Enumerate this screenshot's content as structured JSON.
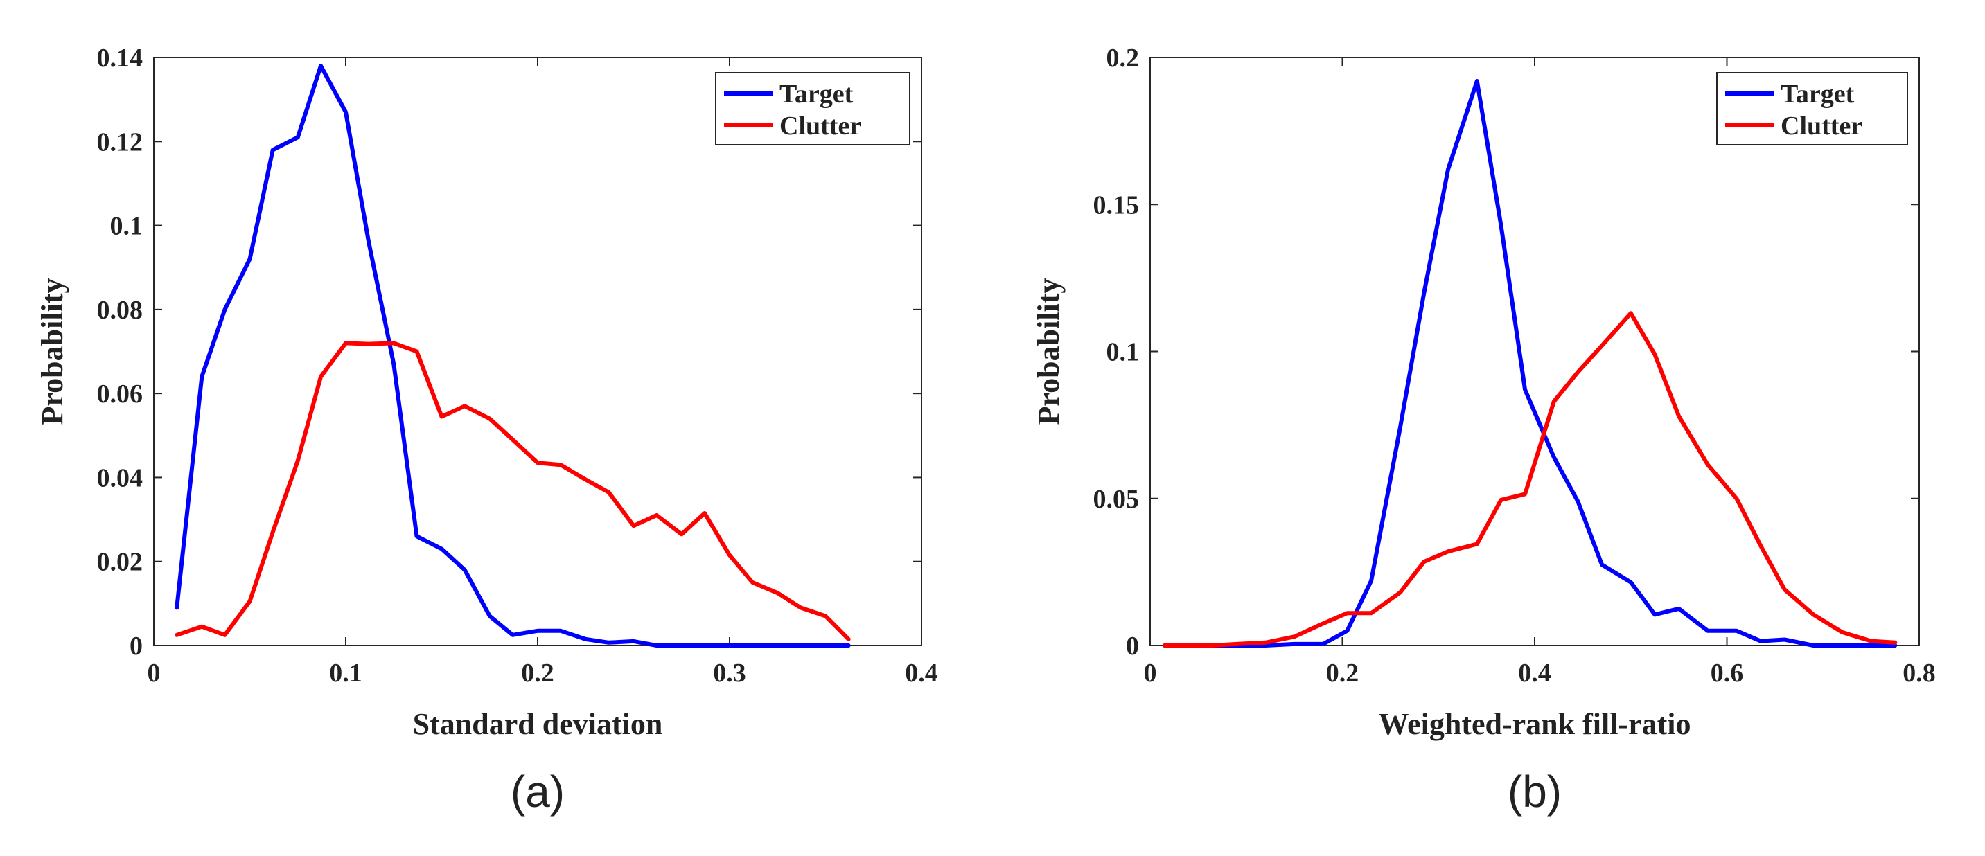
{
  "chart_data": [
    {
      "type": "line",
      "panel_label": "(a)",
      "xlabel": "Standard deviation",
      "ylabel": "Probability",
      "xlim": [
        0,
        0.4
      ],
      "ylim": [
        0,
        0.14
      ],
      "xticks": [
        0,
        0.1,
        0.2,
        0.3,
        0.4
      ],
      "xtick_labels": [
        "0",
        "0.1",
        "0.2",
        "0.3",
        "0.4"
      ],
      "yticks": [
        0,
        0.02,
        0.04,
        0.06,
        0.08,
        0.1,
        0.12,
        0.14
      ],
      "ytick_labels": [
        "0",
        "0.02",
        "0.04",
        "0.06",
        "0.08",
        "0.1",
        "0.12",
        "0.14"
      ],
      "legend_position": "top-right",
      "series": [
        {
          "name": "Target",
          "color": "#0000ff",
          "x": [
            0.012,
            0.025,
            0.037,
            0.05,
            0.062,
            0.075,
            0.087,
            0.1,
            0.112,
            0.125,
            0.137,
            0.15,
            0.162,
            0.175,
            0.187,
            0.2,
            0.212,
            0.225,
            0.237,
            0.25,
            0.262,
            0.275,
            0.287,
            0.3,
            0.312,
            0.325,
            0.337,
            0.35,
            0.362
          ],
          "y": [
            0.009,
            0.064,
            0.08,
            0.092,
            0.118,
            0.121,
            0.138,
            0.127,
            0.096,
            0.067,
            0.026,
            0.023,
            0.018,
            0.007,
            0.0025,
            0.0035,
            0.0035,
            0.0015,
            0.0007,
            0.001,
            0,
            0,
            0,
            0,
            0,
            0,
            0,
            0,
            0
          ]
        },
        {
          "name": "Clutter",
          "color": "#ff0000",
          "x": [
            0.012,
            0.025,
            0.037,
            0.05,
            0.062,
            0.075,
            0.087,
            0.1,
            0.112,
            0.125,
            0.137,
            0.15,
            0.162,
            0.175,
            0.187,
            0.2,
            0.212,
            0.225,
            0.237,
            0.25,
            0.262,
            0.275,
            0.287,
            0.3,
            0.312,
            0.325,
            0.337,
            0.35,
            0.362
          ],
          "y": [
            0.0025,
            0.0045,
            0.0025,
            0.0105,
            0.027,
            0.044,
            0.064,
            0.072,
            0.0718,
            0.072,
            0.07,
            0.0545,
            0.057,
            0.054,
            0.049,
            0.0435,
            0.043,
            0.0395,
            0.0365,
            0.0285,
            0.031,
            0.0265,
            0.0315,
            0.0215,
            0.015,
            0.0125,
            0.009,
            0.007,
            0.0015
          ]
        }
      ]
    },
    {
      "type": "line",
      "panel_label": "(b)",
      "xlabel": "Weighted-rank fill-ratio",
      "ylabel": "Probability",
      "xlim": [
        0,
        0.8
      ],
      "ylim": [
        0,
        0.2
      ],
      "xticks": [
        0,
        0.2,
        0.4,
        0.6,
        0.8
      ],
      "xtick_labels": [
        "0",
        "0.2",
        "0.4",
        "0.6",
        "0.8"
      ],
      "yticks": [
        0,
        0.05,
        0.1,
        0.15,
        0.2
      ],
      "ytick_labels": [
        "0",
        "0.05",
        "0.1",
        "0.15",
        "0.2"
      ],
      "legend_position": "top-right",
      "series": [
        {
          "name": "Target",
          "color": "#0000ff",
          "x": [
            0.015,
            0.04,
            0.065,
            0.09,
            0.12,
            0.15,
            0.18,
            0.205,
            0.23,
            0.26,
            0.285,
            0.31,
            0.34,
            0.365,
            0.39,
            0.42,
            0.445,
            0.47,
            0.5,
            0.525,
            0.55,
            0.58,
            0.61,
            0.635,
            0.66,
            0.69,
            0.72,
            0.75,
            0.775
          ],
          "y": [
            0,
            0,
            0,
            0,
            0,
            0.0005,
            0.0005,
            0.005,
            0.022,
            0.074,
            0.12,
            0.162,
            0.192,
            0.143,
            0.087,
            0.064,
            0.049,
            0.0275,
            0.0215,
            0.0105,
            0.0125,
            0.005,
            0.005,
            0.0015,
            0.002,
            0,
            0,
            0,
            0
          ]
        },
        {
          "name": "Clutter",
          "color": "#ff0000",
          "x": [
            0.015,
            0.04,
            0.065,
            0.09,
            0.12,
            0.15,
            0.18,
            0.205,
            0.23,
            0.26,
            0.285,
            0.31,
            0.34,
            0.365,
            0.39,
            0.42,
            0.445,
            0.47,
            0.5,
            0.525,
            0.55,
            0.58,
            0.61,
            0.635,
            0.66,
            0.69,
            0.72,
            0.75,
            0.775
          ],
          "y": [
            0,
            0,
            0,
            0.0005,
            0.001,
            0.003,
            0.0075,
            0.011,
            0.011,
            0.018,
            0.0285,
            0.032,
            0.0345,
            0.0495,
            0.0515,
            0.083,
            0.093,
            0.102,
            0.113,
            0.099,
            0.078,
            0.0615,
            0.05,
            0.034,
            0.019,
            0.0105,
            0.0045,
            0.0015,
            0.001
          ]
        }
      ]
    }
  ]
}
